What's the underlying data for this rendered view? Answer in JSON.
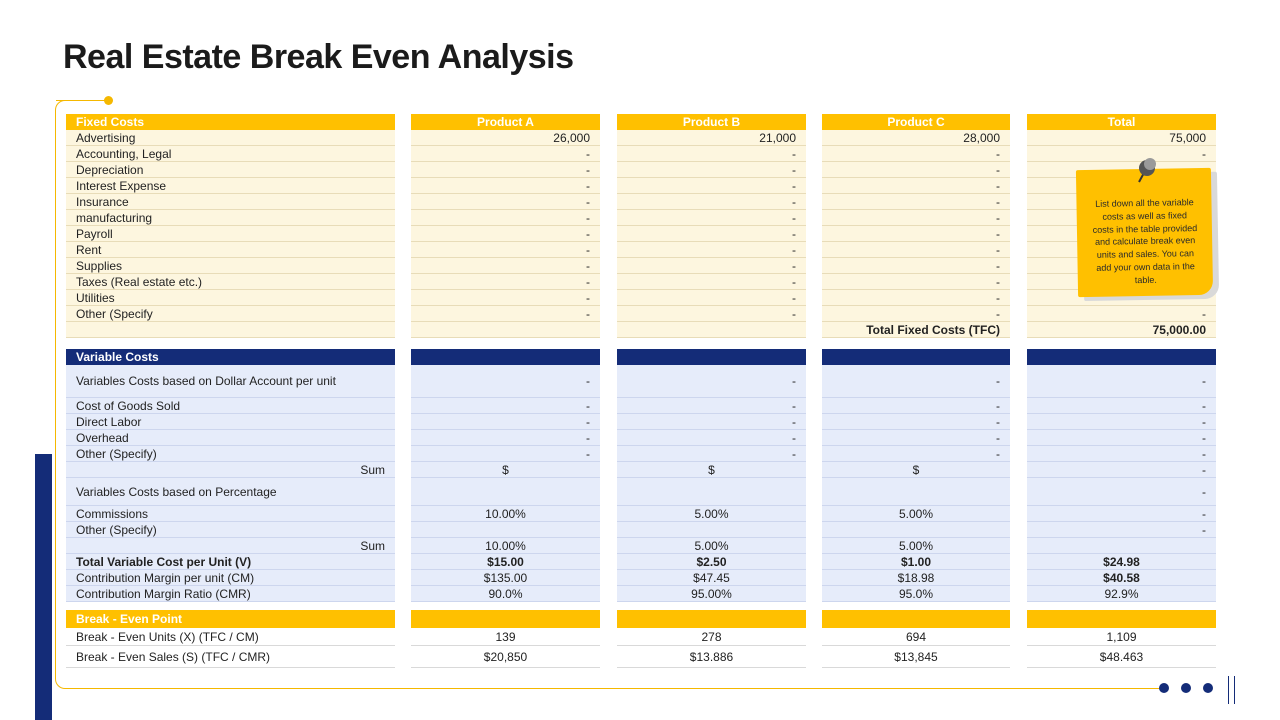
{
  "title": "Real Estate Break Even Analysis",
  "headers": {
    "fixed": [
      "Fixed Costs",
      "Product A",
      "Product B",
      "Product C",
      "Total"
    ],
    "variable": "Variable Costs",
    "break_even": "Break - Even Point"
  },
  "fixed_rows": [
    {
      "label": "Advertising",
      "a": "26,000",
      "b": "21,000",
      "c": "28,000",
      "t": "75,000"
    },
    {
      "label": "Accounting, Legal",
      "a": "-",
      "b": "-",
      "c": "-",
      "t": "-"
    },
    {
      "label": "Depreciation",
      "a": "-",
      "b": "-",
      "c": "-",
      "t": ""
    },
    {
      "label": "Interest Expense",
      "a": "-",
      "b": "-",
      "c": "-",
      "t": ""
    },
    {
      "label": "Insurance",
      "a": "-",
      "b": "-",
      "c": "-",
      "t": ""
    },
    {
      "label": "manufacturing",
      "a": "-",
      "b": "-",
      "c": "-",
      "t": ""
    },
    {
      "label": "Payroll",
      "a": "-",
      "b": "-",
      "c": "-",
      "t": ""
    },
    {
      "label": "Rent",
      "a": "-",
      "b": "-",
      "c": "-",
      "t": ""
    },
    {
      "label": "Supplies",
      "a": "-",
      "b": "-",
      "c": "-",
      "t": ""
    },
    {
      "label": "Taxes (Real estate etc.)",
      "a": "-",
      "b": "-",
      "c": "-",
      "t": ""
    },
    {
      "label": "Utilities",
      "a": "-",
      "b": "-",
      "c": "-",
      "t": ""
    },
    {
      "label": "Other (Specify",
      "a": "-",
      "b": "-",
      "c": "-",
      "t": "-"
    }
  ],
  "tfc": {
    "label": "Total Fixed Costs (TFC)",
    "value": "75,000.00"
  },
  "var_dollar": {
    "label": "Variables Costs based on Dollar Account per unit",
    "a": "-",
    "b": "-",
    "c": "-",
    "t": "-"
  },
  "var_rows": [
    {
      "label": "Cost of Goods Sold",
      "a": "-",
      "b": "-",
      "c": "-",
      "t": "-"
    },
    {
      "label": "Direct Labor",
      "a": "-",
      "b": "-",
      "c": "-",
      "t": "-"
    },
    {
      "label": "Overhead",
      "a": "-",
      "b": "-",
      "c": "-",
      "t": "-"
    },
    {
      "label": "Other (Specify)",
      "a": "-",
      "b": "-",
      "c": "-",
      "t": "-"
    }
  ],
  "sum1": {
    "label": "Sum",
    "a": "$",
    "b": "$",
    "c": "$",
    "t": "-"
  },
  "var_pct": {
    "label": "Variables Costs based on Percentage",
    "t": "-"
  },
  "pct_rows": [
    {
      "label": "Commissions",
      "a": "10.00%",
      "b": "5.00%",
      "c": "5.00%",
      "t": "-"
    },
    {
      "label": "Other (Specify)",
      "a": "",
      "b": "",
      "c": "",
      "t": "-"
    }
  ],
  "sum2": {
    "label": "Sum",
    "a": "10.00%",
    "b": "5.00%",
    "c": "5.00%",
    "t": ""
  },
  "tvc": {
    "label": "Total Variable Cost per Unit (V)",
    "a": "$15.00",
    "b": "$2.50",
    "c": "$1.00",
    "t": "$24.98"
  },
  "cm": {
    "label": "Contribution Margin per unit (CM)",
    "a": "$135.00",
    "b": "$47.45",
    "c": "$18.98",
    "t": "$40.58"
  },
  "cmr": {
    "label": "Contribution Margin Ratio (CMR)",
    "a": "90.0%",
    "b": "95.00%",
    "c": "95.0%",
    "t": "92.9%"
  },
  "be_units": {
    "label": "Break - Even Units (X) (TFC / CM)",
    "a": "139",
    "b": "278",
    "c": "694",
    "t": "1,109"
  },
  "be_sales": {
    "label": "Break - Even Sales (S) (TFC / CMR)",
    "a": "$20,850",
    "b": "$13.886",
    "c": "$13,845",
    "t": "$48.463"
  },
  "note": "List down all the variable costs as well as fixed costs in the table provided and calculate break even units and sales. You can add your own data in the table."
}
